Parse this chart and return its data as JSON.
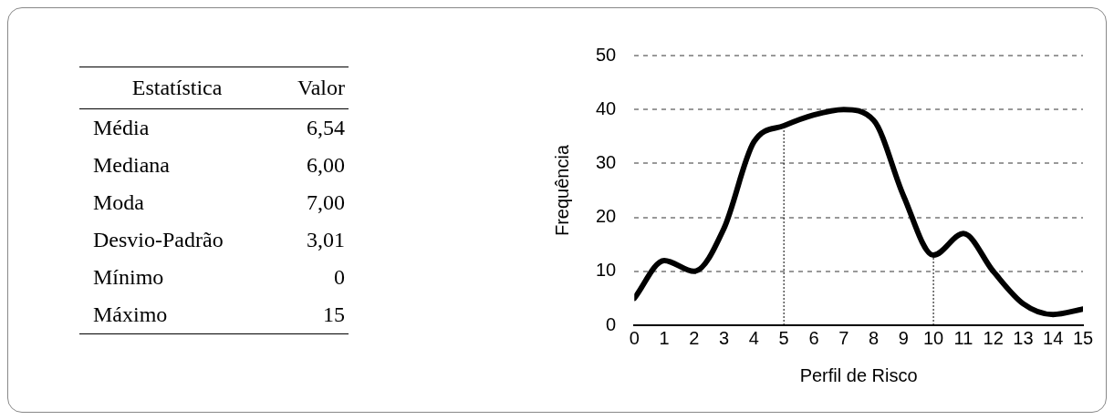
{
  "chart_data": [
    {
      "type": "other",
      "xlabel": "Estatística",
      "ylabel": "Valor",
      "categories": [
        "Média",
        "Mediana",
        "Moda",
        "Desvio-Padrão",
        "Mínimo",
        "Máximo"
      ],
      "value_labels": [
        "6,54",
        "6,00",
        "7,00",
        "3,01",
        "0",
        "15"
      ]
    },
    {
      "type": "line",
      "x": [
        0,
        1,
        2,
        3,
        4,
        5,
        6,
        7,
        8,
        9,
        10,
        11,
        12,
        13,
        14,
        15
      ],
      "series": [
        {
          "color": "#000000",
          "values": [
            5,
            12,
            10,
            18,
            34,
            37,
            39,
            40,
            38,
            24,
            13,
            17,
            10,
            4,
            2,
            3
          ]
        }
      ],
      "xlabel": "Perfil de Risco",
      "ylabel": "Frequência",
      "xlim": [
        0,
        15
      ],
      "xticks": [
        0,
        1,
        2,
        3,
        4,
        5,
        6,
        7,
        8,
        9,
        10,
        11,
        12,
        13,
        14,
        15
      ],
      "ylim": [
        0,
        50
      ],
      "yticks": [
        0,
        10,
        20,
        30,
        40,
        50
      ],
      "grid": "y",
      "ref_lines": [
        {
          "axis": "x",
          "value": 5,
          "color": "#000000",
          "line_style": "dotted"
        },
        {
          "axis": "x",
          "value": 10,
          "color": "#000000",
          "line_style": "dotted"
        }
      ]
    }
  ]
}
